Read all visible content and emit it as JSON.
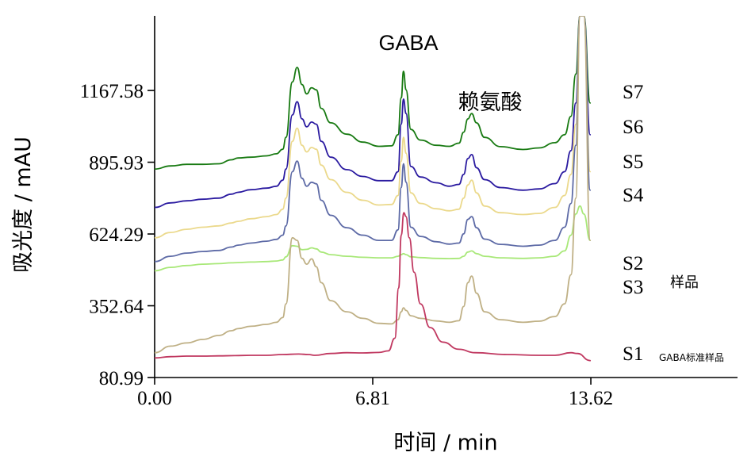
{
  "chart_data": {
    "type": "line",
    "xlabel": "时间 / min",
    "ylabel": "吸光度 / mAU",
    "xlim": [
      0,
      18.2
    ],
    "ylim": [
      80.99,
      1450
    ],
    "x_ticks": [
      "0.00",
      "6.81",
      "13.62"
    ],
    "x_tick_values": [
      0,
      6.81,
      13.62
    ],
    "y_ticks": [
      "80.99",
      "352.64",
      "624.29",
      "895.93",
      "1167.58"
    ],
    "y_tick_values": [
      80.99,
      352.64,
      624.29,
      895.93,
      1167.58
    ],
    "peak_labels": [
      {
        "text": "GABA",
        "x": 7.77
      },
      {
        "text": "赖氨酸",
        "x": 9.9
      }
    ],
    "group_labels": [
      {
        "text": "样品",
        "size": "small"
      },
      {
        "text": "GABA标准样品",
        "size": "tiny"
      }
    ],
    "series": [
      {
        "name": "S7",
        "color": "#187a12",
        "x": [
          0,
          0.5,
          1.0,
          1.5,
          2.0,
          2.4,
          2.6,
          3.0,
          3.5,
          3.8,
          4.0,
          4.1,
          4.3,
          4.45,
          4.6,
          4.75,
          4.9,
          5.05,
          5.2,
          5.5,
          6.0,
          6.5,
          7.0,
          7.4,
          7.6,
          7.7,
          7.77,
          7.85,
          8.0,
          8.3,
          8.8,
          9.2,
          9.5,
          9.65,
          9.78,
          9.9,
          10.05,
          10.3,
          10.8,
          11.5,
          12.0,
          12.5,
          12.8,
          13.0,
          13.15,
          13.28,
          13.4,
          13.6
        ],
        "y": [
          870,
          882,
          888,
          888,
          890,
          905,
          912,
          915,
          920,
          928,
          945,
          990,
          1200,
          1255,
          1190,
          1155,
          1178,
          1170,
          1100,
          1045,
          1002,
          972,
          956,
          958,
          1000,
          1140,
          1240,
          1170,
          1020,
          980,
          960,
          956,
          968,
          1010,
          1060,
          1080,
          1045,
          990,
          955,
          944,
          950,
          970,
          1000,
          1070,
          1230,
          1450,
          1450,
          1120
        ]
      },
      {
        "name": "S6",
        "color": "#2a1aa0",
        "x": [
          0,
          0.5,
          1.0,
          1.5,
          2.0,
          2.4,
          2.6,
          3.0,
          3.5,
          3.8,
          4.0,
          4.1,
          4.3,
          4.45,
          4.6,
          4.75,
          4.9,
          5.05,
          5.2,
          5.5,
          6.0,
          6.5,
          7.0,
          7.4,
          7.6,
          7.7,
          7.77,
          7.85,
          8.0,
          8.3,
          8.8,
          9.2,
          9.5,
          9.65,
          9.78,
          9.9,
          10.05,
          10.3,
          10.8,
          11.5,
          12.0,
          12.5,
          12.8,
          13.0,
          13.15,
          13.28,
          13.4,
          13.6
        ],
        "y": [
          725,
          742,
          750,
          756,
          760,
          775,
          782,
          792,
          798,
          805,
          828,
          870,
          1075,
          1125,
          1060,
          1030,
          1048,
          1040,
          975,
          915,
          868,
          842,
          826,
          826,
          860,
          1040,
          1135,
          1080,
          880,
          840,
          818,
          805,
          812,
          850,
          910,
          925,
          875,
          830,
          800,
          790,
          795,
          815,
          860,
          940,
          1120,
          1450,
          1450,
          1000
        ]
      },
      {
        "name": "S5",
        "color": "#ebd98c",
        "x": [
          0,
          0.5,
          1.0,
          1.5,
          2.0,
          2.4,
          2.6,
          3.0,
          3.5,
          3.8,
          4.0,
          4.1,
          4.3,
          4.45,
          4.6,
          4.75,
          4.9,
          5.05,
          5.2,
          5.5,
          6.0,
          6.5,
          7.0,
          7.4,
          7.6,
          7.7,
          7.77,
          7.85,
          8.0,
          8.3,
          8.8,
          9.2,
          9.5,
          9.65,
          9.78,
          9.9,
          10.05,
          10.3,
          10.8,
          11.5,
          12.0,
          12.5,
          12.8,
          13.0,
          13.15,
          13.28,
          13.4,
          13.6
        ],
        "y": [
          610,
          630,
          642,
          650,
          655,
          666,
          672,
          682,
          690,
          698,
          718,
          760,
          975,
          1025,
          960,
          935,
          952,
          945,
          885,
          830,
          782,
          752,
          734,
          736,
          770,
          900,
          990,
          930,
          780,
          740,
          720,
          712,
          718,
          760,
          810,
          828,
          780,
          730,
          705,
          698,
          702,
          725,
          770,
          850,
          1040,
          1450,
          1450,
          860
        ]
      },
      {
        "name": "S4",
        "color": "#5d6aa6",
        "x": [
          0,
          0.5,
          1.0,
          1.5,
          2.0,
          2.4,
          2.6,
          3.0,
          3.5,
          3.8,
          4.0,
          4.1,
          4.3,
          4.45,
          4.6,
          4.75,
          4.9,
          5.05,
          5.2,
          5.5,
          6.0,
          6.5,
          7.0,
          7.4,
          7.6,
          7.7,
          7.77,
          7.85,
          8.0,
          8.3,
          8.8,
          9.2,
          9.5,
          9.65,
          9.78,
          9.9,
          10.05,
          10.3,
          10.8,
          11.5,
          12.0,
          12.5,
          12.8,
          13.0,
          13.15,
          13.28,
          13.4,
          13.6
        ],
        "y": [
          520,
          540,
          552,
          558,
          562,
          575,
          582,
          590,
          597,
          604,
          620,
          655,
          860,
          900,
          835,
          805,
          820,
          814,
          752,
          695,
          648,
          620,
          600,
          600,
          640,
          800,
          890,
          820,
          650,
          615,
          595,
          586,
          590,
          625,
          680,
          690,
          648,
          605,
          585,
          578,
          582,
          600,
          650,
          740,
          960,
          1450,
          1450,
          790
        ]
      },
      {
        "name": "S2",
        "color": "#a8e878",
        "x": [
          0,
          0.5,
          1.0,
          1.5,
          2.0,
          2.4,
          2.6,
          3.0,
          3.5,
          3.8,
          4.0,
          4.1,
          4.3,
          4.45,
          4.6,
          4.75,
          4.9,
          5.05,
          5.2,
          5.5,
          6.0,
          6.5,
          7.0,
          7.4,
          7.6,
          7.7,
          7.77,
          7.85,
          8.0,
          8.3,
          8.8,
          9.2,
          9.5,
          9.65,
          9.78,
          9.9,
          10.05,
          10.3,
          10.8,
          11.5,
          12.0,
          12.5,
          12.8,
          13.0,
          13.15,
          13.28,
          13.4,
          13.6
        ],
        "y": [
          485,
          498,
          505,
          510,
          512,
          515,
          516,
          518,
          520,
          522,
          526,
          538,
          580,
          578,
          565,
          566,
          572,
          568,
          556,
          546,
          540,
          536,
          534,
          534,
          540,
          546,
          550,
          546,
          538,
          535,
          532,
          531,
          532,
          540,
          556,
          560,
          550,
          540,
          534,
          532,
          534,
          540,
          560,
          620,
          700,
          730,
          700,
          600
        ]
      },
      {
        "name": "S3",
        "color": "#bfb085",
        "x": [
          0,
          0.5,
          1.0,
          1.5,
          2.0,
          2.4,
          2.6,
          3.0,
          3.5,
          3.8,
          4.0,
          4.1,
          4.3,
          4.45,
          4.6,
          4.75,
          4.9,
          5.05,
          5.2,
          5.5,
          6.0,
          6.5,
          7.0,
          7.4,
          7.6,
          7.7,
          7.77,
          7.85,
          8.0,
          8.3,
          8.8,
          9.2,
          9.5,
          9.65,
          9.78,
          9.9,
          10.05,
          10.3,
          10.8,
          11.5,
          12.0,
          12.5,
          12.8,
          13.0,
          13.15,
          13.28,
          13.4,
          13.6
        ],
        "y": [
          175,
          200,
          212,
          225,
          240,
          258,
          266,
          275,
          282,
          290,
          308,
          360,
          610,
          600,
          532,
          510,
          530,
          500,
          440,
          372,
          330,
          305,
          286,
          284,
          300,
          330,
          345,
          335,
          315,
          305,
          295,
          290,
          296,
          350,
          440,
          465,
          400,
          330,
          300,
          290,
          294,
          312,
          360,
          470,
          760,
          1450,
          1450,
          600
        ]
      },
      {
        "name": "S1",
        "color": "#c03860",
        "x": [
          0,
          0.5,
          1.0,
          1.5,
          2.0,
          2.5,
          3.0,
          3.5,
          4.0,
          4.5,
          4.8,
          5.0,
          5.5,
          6.0,
          6.5,
          7.0,
          7.3,
          7.5,
          7.62,
          7.7,
          7.78,
          7.85,
          7.95,
          8.1,
          8.3,
          8.6,
          9.0,
          9.5,
          10.0,
          11.0,
          12.0,
          12.5,
          13.0,
          13.2,
          13.6
        ],
        "y": [
          155,
          160,
          162,
          162,
          163,
          164,
          165,
          165,
          168,
          170,
          168,
          165,
          172,
          175,
          174,
          176,
          182,
          230,
          420,
          620,
          705,
          690,
          610,
          480,
          360,
          270,
          215,
          188,
          175,
          168,
          165,
          165,
          175,
          172,
          145
        ]
      }
    ]
  }
}
